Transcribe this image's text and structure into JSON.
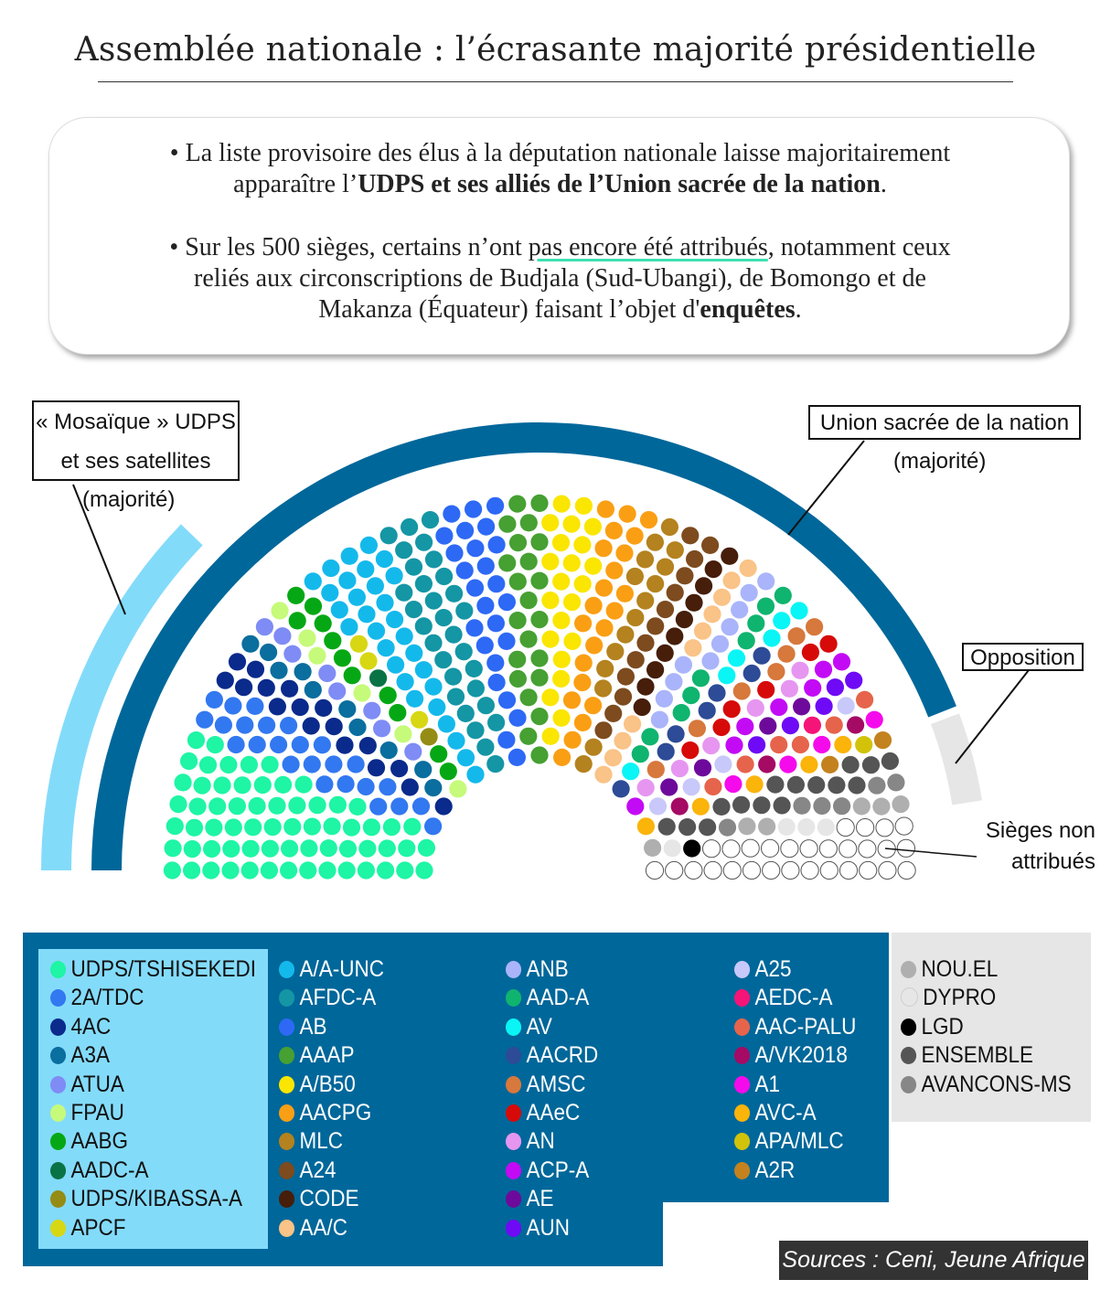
{
  "title": "Assemblée nationale : l’écrasante majorité présidentielle",
  "info": {
    "p1_a": "• La liste provisoire des élus à la députation nationale laisse majoritairement",
    "p1_b": "apparaître l’",
    "p1_bold": "UDPS et ses alliés de l’Union sacrée de la nation",
    "p1_c": ".",
    "p2_a": "• Sur les 500 sièges, certains n’ont ",
    "p2_hl": "pas encore été attribués",
    "p2_b": ", notamment ceux",
    "p2_line2": "reliés aux circonscriptions de Budjala (Sud-Ubangi), de Bomongo et de",
    "p2_c": "Makanza (Équateur) faisant l’objet d'",
    "p2_bold": "enquêtes",
    "p2_d": "."
  },
  "annotations": {
    "mosaique_line1": "« Mosaïque » UDPS",
    "mosaique_line2": "et ses satellites",
    "mosaique_sub": "(majorité)",
    "union": "Union sacrée de la nation",
    "union_sub": "(majorité)",
    "opposition": "Opposition",
    "unassigned_line1": "Sièges non",
    "unassigned_line2": "attribués"
  },
  "colors": {
    "mosaique_arc": "#83dbfa",
    "union_arc": "#00679a",
    "opposition_arc": "#e6e6e6",
    "legend_bg": "#00679a"
  },
  "chart_data": {
    "type": "parliament",
    "total_seats": 500,
    "note_estimated": true,
    "parties": [
      {
        "name": "UDPS/TSHISEKEDI",
        "color": "#1ef5a5",
        "seats": 65,
        "group": "mosaique"
      },
      {
        "name": "2A/TDC",
        "color": "#3278f0",
        "seats": 25,
        "group": "mosaique"
      },
      {
        "name": "4AC",
        "color": "#0a2a8c",
        "seats": 17,
        "group": "mosaique"
      },
      {
        "name": "A3A",
        "color": "#0a6e9e",
        "seats": 10,
        "group": "mosaique"
      },
      {
        "name": "ATUA",
        "color": "#7f8cf5",
        "seats": 8,
        "group": "mosaique"
      },
      {
        "name": "FPAU",
        "color": "#c6fa7a",
        "seats": 6,
        "group": "mosaique"
      },
      {
        "name": "AABG",
        "color": "#05a814",
        "seats": 11,
        "group": "mosaique"
      },
      {
        "name": "AADC-A",
        "color": "#0a7345",
        "seats": 1,
        "group": "mosaique"
      },
      {
        "name": "UDPS/KIBASSA-A",
        "color": "#948c14",
        "seats": 1,
        "group": "mosaique"
      },
      {
        "name": "APCF",
        "color": "#d7d714",
        "seats": 3,
        "group": "mosaique"
      },
      {
        "name": "A/A-UNC",
        "color": "#14b9eb",
        "seats": 30,
        "group": "union"
      },
      {
        "name": "AFDC-A",
        "color": "#1496a5",
        "seats": 30,
        "group": "union"
      },
      {
        "name": "AB",
        "color": "#2d69f5",
        "seats": 25,
        "group": "union"
      },
      {
        "name": "AAAP",
        "color": "#46a032",
        "seats": 22,
        "group": "union"
      },
      {
        "name": "A/B50",
        "color": "#fae600",
        "seats": 22,
        "group": "union"
      },
      {
        "name": "AACPG",
        "color": "#fa9f14",
        "seats": 22,
        "group": "union"
      },
      {
        "name": "MLC",
        "color": "#b4821e",
        "seats": 15,
        "group": "union"
      },
      {
        "name": "A24",
        "color": "#7d4b1e",
        "seats": 13,
        "group": "union"
      },
      {
        "name": "CODE",
        "color": "#461e0a",
        "seats": 10,
        "group": "union"
      },
      {
        "name": "AA/C",
        "color": "#fac387",
        "seats": 10,
        "group": "union"
      },
      {
        "name": "ANB",
        "color": "#aab4fa",
        "seats": 10,
        "group": "union"
      },
      {
        "name": "AAD-A",
        "color": "#0fb46e",
        "seats": 9,
        "group": "union"
      },
      {
        "name": "AV",
        "color": "#0af5f5",
        "seats": 6,
        "group": "union"
      },
      {
        "name": "AACRD",
        "color": "#2d4b96",
        "seats": 7,
        "group": "union"
      },
      {
        "name": "AMSC",
        "color": "#d7783c",
        "seats": 7,
        "group": "union"
      },
      {
        "name": "AAeC",
        "color": "#d70a0a",
        "seats": 6,
        "group": "union"
      },
      {
        "name": "AN",
        "color": "#e696f0",
        "seats": 6,
        "group": "union"
      },
      {
        "name": "ACP-A",
        "color": "#c30af5",
        "seats": 7,
        "group": "union"
      },
      {
        "name": "AE",
        "color": "#6e0a9b",
        "seats": 4,
        "group": "union"
      },
      {
        "name": "AUN",
        "color": "#6e0af5",
        "seats": 5,
        "group": "union"
      },
      {
        "name": "A25",
        "color": "#c8c8fa",
        "seats": 4,
        "group": "union"
      },
      {
        "name": "AEDC-A",
        "color": "#f51478",
        "seats": 1,
        "group": "union"
      },
      {
        "name": "AAC-PALU",
        "color": "#e6644b",
        "seats": 6,
        "group": "union"
      },
      {
        "name": "A/VK2018",
        "color": "#a50a64",
        "seats": 3,
        "group": "union"
      },
      {
        "name": "A1",
        "color": "#f50aeb",
        "seats": 4,
        "group": "union"
      },
      {
        "name": "AVC-A",
        "color": "#fab40a",
        "seats": 5,
        "group": "union"
      },
      {
        "name": "APA/MLC",
        "color": "#d2c30a",
        "seats": 1,
        "group": "union"
      },
      {
        "name": "A2R",
        "color": "#c3821e",
        "seats": 2,
        "group": "union"
      },
      {
        "name": "ENSEMBLE",
        "color": "#555555",
        "seats": 15,
        "group": "opposition"
      },
      {
        "name": "AVANCONS-MS",
        "color": "#878787",
        "seats": 6,
        "group": "opposition"
      },
      {
        "name": "NOU.EL",
        "color": "#afafaf",
        "seats": 6,
        "group": "opposition"
      },
      {
        "name": "DYPRO",
        "color": "#e6e6e6",
        "seats": 4,
        "group": "opposition"
      },
      {
        "name": "LGD",
        "color": "#000000",
        "seats": 1,
        "group": "opposition"
      }
    ],
    "unassigned_seats": 29
  },
  "legend_columns": [
    [
      "UDPS/TSHISEKEDI",
      "2A/TDC",
      "4AC",
      "A3A",
      "ATUA",
      "FPAU",
      "AABG",
      "AADC-A",
      "UDPS/KIBASSA-A",
      "APCF"
    ],
    [
      "A/A-UNC",
      "AFDC-A",
      "AB",
      "AAAP",
      "A/B50",
      "AACPG",
      "MLC",
      "A24",
      "CODE",
      "AA/C"
    ],
    [
      "ANB",
      "AAD-A",
      "AV",
      "AACRD",
      "AMSC",
      "AAeC",
      "AN",
      "ACP-A",
      "AE",
      "AUN"
    ],
    [
      "A25",
      "AEDC-A",
      "AAC-PALU",
      "A/VK2018",
      "A1",
      "AVC-A",
      "APA/MLC",
      "A2R"
    ],
    [
      "NOU.EL",
      "DYPRO",
      "LGD",
      "ENSEMBLE",
      "AVANCONS-MS"
    ]
  ],
  "sources": "Sources : Ceni, Jeune Afrique"
}
